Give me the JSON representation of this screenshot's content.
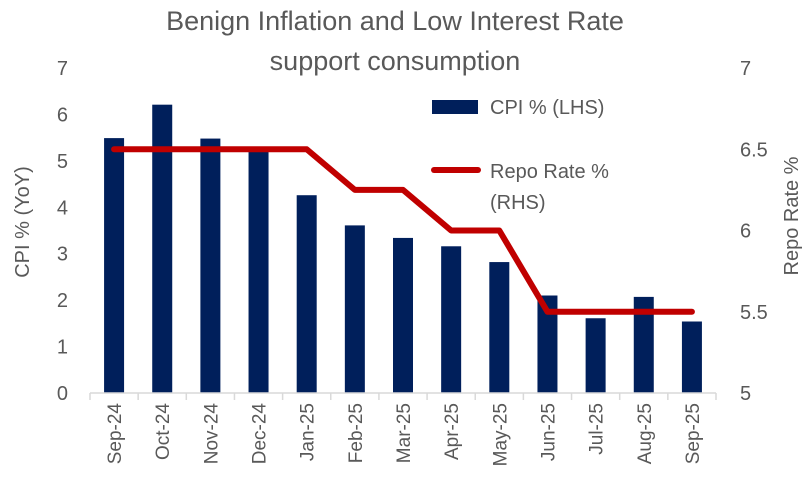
{
  "chart_data": {
    "type": "bar+line",
    "title": [
      "Benign Inflation and Low Interest Rate",
      "support consumption"
    ],
    "categories": [
      "Sep-24",
      "Oct-24",
      "Nov-24",
      "Dec-24",
      "Jan-25",
      "Feb-25",
      "Mar-25",
      "Apr-25",
      "May-25",
      "Jun-25",
      "Jul-25",
      "Aug-25",
      "Sep-25"
    ],
    "series": [
      {
        "name": "CPI % (LHS)",
        "type": "bar",
        "axis": "left",
        "color": "#001F5B",
        "values": [
          5.49,
          6.21,
          5.48,
          5.22,
          4.26,
          3.61,
          3.34,
          3.16,
          2.82,
          2.1,
          1.61,
          2.07,
          1.54
        ]
      },
      {
        "name": "Repo Rate % (RHS)",
        "legend_lines": [
          "Repo Rate %",
          "(RHS)"
        ],
        "type": "line",
        "axis": "right",
        "color": "#C00000",
        "values": [
          6.5,
          6.5,
          6.5,
          6.5,
          6.5,
          6.25,
          6.25,
          6.0,
          6.0,
          5.5,
          5.5,
          5.5,
          5.5
        ]
      }
    ],
    "ylabel": "CPI % (YoY)",
    "y2label": "Repo Rate %",
    "ylim": [
      0,
      7
    ],
    "yticks": [
      "0",
      "1",
      "2",
      "3",
      "4",
      "5",
      "6",
      "7"
    ],
    "y2lim": [
      5,
      7
    ],
    "y2ticks": [
      "5",
      "5.5",
      "6",
      "6.5",
      "7"
    ],
    "grid": false,
    "legend_placement": "top-right"
  }
}
